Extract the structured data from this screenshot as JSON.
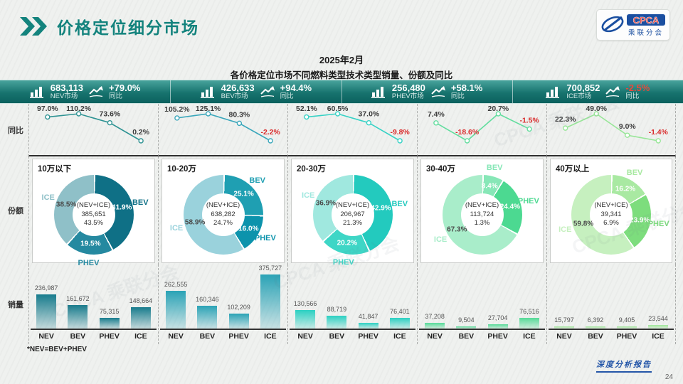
{
  "colors": {
    "accent_teal": "#13837d",
    "banner_top": "#48a39c",
    "banner_bottom": "#0b615e",
    "negative": "#d92b2b",
    "banner_negative": "#e8493a",
    "footer_blue": "#2456a8"
  },
  "header": {
    "title": "价格定位细分市场",
    "subtitle_line1": "2025年2月",
    "subtitle_line2": "各价格定位市场不同燃料类型技术类型销量、份额及同比",
    "logo": {
      "name": "CPCA",
      "sub": "乘联分会"
    }
  },
  "banner": {
    "items": [
      {
        "value": "683,113",
        "label": "NEV市场",
        "yoy": "+79.0%",
        "yoy_label": "同比",
        "yoy_negative": false
      },
      {
        "value": "426,633",
        "label": "BEV市场",
        "yoy": "+94.4%",
        "yoy_label": "同比",
        "yoy_negative": false
      },
      {
        "value": "256,480",
        "label": "PHEV市场",
        "yoy": "+58.1%",
        "yoy_label": "同比",
        "yoy_negative": false
      },
      {
        "value": "700,852",
        "label": "ICE市场",
        "yoy": "-2.5%",
        "yoy_label": "同比",
        "yoy_negative": true
      }
    ]
  },
  "row_labels": {
    "yoy": "同比",
    "share": "份额",
    "volume": "销量"
  },
  "bar_scale_max": 375727,
  "chart_data": [
    {
      "segment": "10万以下",
      "line": {
        "type": "line",
        "unit": "%",
        "color": "#2e9393",
        "values": [
          97.0,
          110.2,
          73.6,
          0.2
        ],
        "labels": [
          "97.0%",
          "110.2%",
          "73.6%",
          "0.2%"
        ]
      },
      "donut": {
        "type": "pie",
        "center": [
          "(NEV+ICE)",
          "385,651",
          "43.5%"
        ],
        "segments": [
          {
            "name": "BEV",
            "pct": 41.9,
            "label": "41.9%",
            "color": "#0f7086",
            "pct_color": "#ffffff"
          },
          {
            "name": "PHEV",
            "pct": 19.5,
            "label": "19.5%",
            "color": "#2589a0",
            "pct_color": "#ffffff"
          },
          {
            "name": "ICE",
            "pct": 38.5,
            "label": "38.5%",
            "color": "#8fc0c8",
            "pct_color": "#4a4a4a"
          }
        ]
      },
      "bars": {
        "type": "bar",
        "color": "#187c8d",
        "categories": [
          "NEV",
          "BEV",
          "PHEV",
          "ICE"
        ],
        "values": [
          236987,
          161672,
          75315,
          148664
        ],
        "labels": [
          "236,987",
          "161,672",
          "75,315",
          "148,664"
        ]
      }
    },
    {
      "segment": "10-20万",
      "line": {
        "type": "line",
        "unit": "%",
        "color": "#3aa7bb",
        "values": [
          105.2,
          125.1,
          80.3,
          -2.2
        ],
        "labels": [
          "105.2%",
          "125.1%",
          "80.3%",
          "-2.2%"
        ]
      },
      "donut": {
        "type": "pie",
        "center": [
          "(NEV+ICE)",
          "638,282",
          "24.7%"
        ],
        "segments": [
          {
            "name": "BEV",
            "pct": 25.1,
            "label": "25.1%",
            "color": "#1f9fb2",
            "pct_color": "#ffffff"
          },
          {
            "name": "PHEV",
            "pct": 16.0,
            "label": "16.0%",
            "color": "#0c93ac",
            "pct_color": "#ffffff"
          },
          {
            "name": "ICE",
            "pct": 58.9,
            "label": "58.9%",
            "color": "#9ad2dc",
            "pct_color": "#4a4a4a"
          }
        ]
      },
      "bars": {
        "type": "bar",
        "color": "#2ba3b6",
        "categories": [
          "NEV",
          "BEV",
          "PHEV",
          "ICE"
        ],
        "values": [
          262555,
          160346,
          102209,
          375727
        ],
        "labels": [
          "262,555",
          "160,346",
          "102,209",
          "375,727"
        ]
      }
    },
    {
      "segment": "20-30万",
      "line": {
        "type": "line",
        "unit": "%",
        "color": "#35d2c5",
        "values": [
          52.1,
          60.5,
          37.0,
          -9.8
        ],
        "labels": [
          "52.1%",
          "60.5%",
          "37.0%",
          "-9.8%"
        ]
      },
      "donut": {
        "type": "pie",
        "center": [
          "(NEV+ICE)",
          "206,967",
          "21.3%"
        ],
        "segments": [
          {
            "name": "BEV",
            "pct": 42.9,
            "label": "42.9%",
            "color": "#23cabe",
            "pct_color": "#ffffff"
          },
          {
            "name": "PHEV",
            "pct": 20.2,
            "label": "20.2%",
            "color": "#3ed6c6",
            "pct_color": "#ffffff"
          },
          {
            "name": "ICE",
            "pct": 36.9,
            "label": "36.9%",
            "color": "#a0e8df",
            "pct_color": "#4a4a4a"
          }
        ]
      },
      "bars": {
        "type": "bar",
        "color": "#2bd0c2",
        "categories": [
          "NEV",
          "BEV",
          "PHEV",
          "ICE"
        ],
        "values": [
          130566,
          88719,
          41847,
          76401
        ],
        "labels": [
          "130,566",
          "88,719",
          "41,847",
          "76,401"
        ]
      }
    },
    {
      "segment": "30-40万",
      "line": {
        "type": "line",
        "unit": "%",
        "color": "#63dd9f",
        "values": [
          7.4,
          -18.6,
          20.7,
          -1.5
        ],
        "labels": [
          "7.4%",
          "-18.6%",
          "20.7%",
          "-1.5%"
        ]
      },
      "donut": {
        "type": "pie",
        "center": [
          "(NEV+ICE)",
          "113,724",
          "1.3%"
        ],
        "segments": [
          {
            "name": "BEV",
            "pct": 8.4,
            "label": "8.4%",
            "color": "#87e7b7",
            "pct_color": "#ffffff"
          },
          {
            "name": "PHEV",
            "pct": 24.4,
            "label": "24.4%",
            "color": "#4cd991",
            "pct_color": "#ffffff"
          },
          {
            "name": "ICE",
            "pct": 67.3,
            "label": "67.3%",
            "color": "#a9edca",
            "pct_color": "#4a4a4a"
          }
        ]
      },
      "bars": {
        "type": "bar",
        "color": "#55da97",
        "categories": [
          "NEV",
          "BEV",
          "PHEV",
          "ICE"
        ],
        "values": [
          37208,
          9504,
          27704,
          76516
        ],
        "labels": [
          "37,208",
          "9,504",
          "27,704",
          "76,516"
        ]
      }
    },
    {
      "segment": "40万以上",
      "line": {
        "type": "line",
        "unit": "%",
        "color": "#97e697",
        "values": [
          22.3,
          49.0,
          9.0,
          -1.4
        ],
        "labels": [
          "22.3%",
          "49.0%",
          "9.0%",
          "-1.4%"
        ]
      },
      "donut": {
        "type": "pie",
        "center": [
          "(NEV+ICE)",
          "39,341",
          "6.9%"
        ],
        "segments": [
          {
            "name": "BEV",
            "pct": 16.2,
            "label": "16.2%",
            "color": "#a9e9a2",
            "pct_color": "#ffffff"
          },
          {
            "name": "PHEV",
            "pct": 23.9,
            "label": "23.9%",
            "color": "#7ddd7d",
            "pct_color": "#ffffff"
          },
          {
            "name": "ICE",
            "pct": 59.8,
            "label": "59.8%",
            "color": "#c6f0bf",
            "pct_color": "#4a4a4a"
          }
        ]
      },
      "bars": {
        "type": "bar",
        "color": "#a0e69a",
        "categories": [
          "NEV",
          "BEV",
          "PHEV",
          "ICE"
        ],
        "values": [
          15797,
          6392,
          9405,
          23544
        ],
        "labels": [
          "15,797",
          "6,392",
          "9,405",
          "23,544"
        ]
      }
    }
  ],
  "footnote": "*NEV=BEV+PHEV",
  "footer": {
    "report": "深度分析报告",
    "page": "24"
  },
  "watermark": "CPCA 乘联分会"
}
